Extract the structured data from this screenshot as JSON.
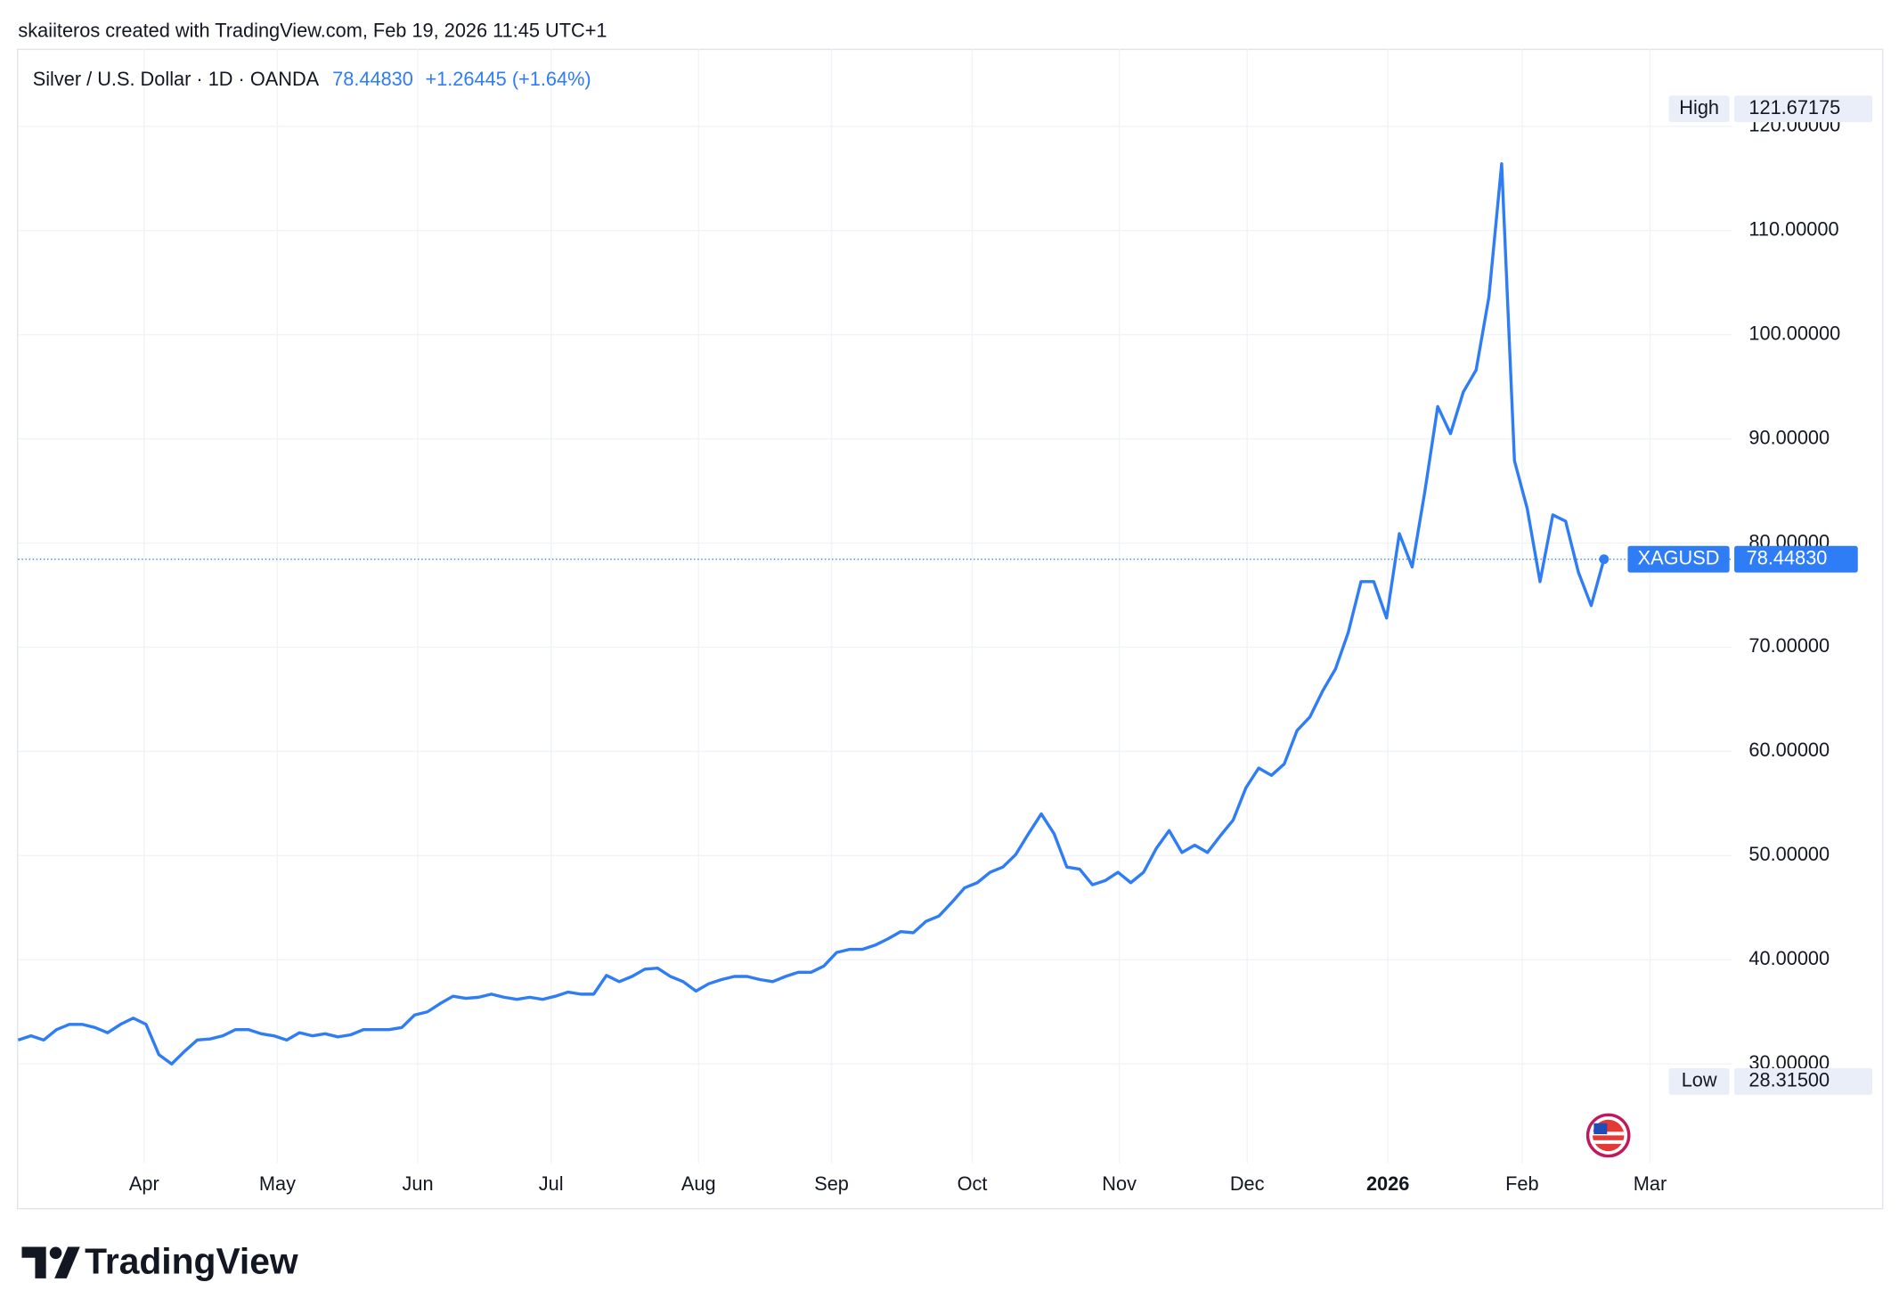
{
  "attribution": "skaiiteros created with TradingView.com, Feb 19, 2026 11:45 UTC+1",
  "footer": {
    "brand": "TradingView"
  },
  "chart_data": {
    "type": "line",
    "title": "Silver / U.S. Dollar · 1D · OANDA",
    "last": {
      "value": 78.4483,
      "label": "78.44830"
    },
    "change": "+1.26445 (+1.64%)",
    "high": {
      "name": "High",
      "value": 121.67175,
      "label": "121.67175"
    },
    "low": {
      "name": "Low",
      "value": 28.315,
      "label": "28.31500"
    },
    "series": [
      {
        "name": "XAGUSD",
        "color": "#2e7cf6",
        "values": [
          32.3,
          32.7,
          32.3,
          33.3,
          33.8,
          33.8,
          33.5,
          33.0,
          33.8,
          34.4,
          33.8,
          30.9,
          30.0,
          31.2,
          32.3,
          32.4,
          32.7,
          33.3,
          33.3,
          32.9,
          32.7,
          32.3,
          33.0,
          32.7,
          32.9,
          32.6,
          32.8,
          33.3,
          33.3,
          33.3,
          33.5,
          34.7,
          35.0,
          35.8,
          36.5,
          36.3,
          36.4,
          36.7,
          36.4,
          36.2,
          36.4,
          36.2,
          36.5,
          36.9,
          36.7,
          36.7,
          38.5,
          37.9,
          38.4,
          39.1,
          39.2,
          38.4,
          37.9,
          37.0,
          37.7,
          38.1,
          38.4,
          38.4,
          38.1,
          37.9,
          38.4,
          38.8,
          38.8,
          39.4,
          40.7,
          41.0,
          41.0,
          41.4,
          42.0,
          42.7,
          42.6,
          43.7,
          44.2,
          45.5,
          46.9,
          47.4,
          48.4,
          48.9,
          50.1,
          52.1,
          54.0,
          52.1,
          48.9,
          48.7,
          47.2,
          47.6,
          48.4,
          47.4,
          48.4,
          50.7,
          52.4,
          50.3,
          51.0,
          50.3,
          51.9,
          53.4,
          56.5,
          58.4,
          57.7,
          58.8,
          62.0,
          63.3,
          65.8,
          67.9,
          71.4,
          76.3,
          76.3,
          72.8,
          80.9,
          77.7,
          85.0,
          93.1,
          90.5,
          94.5,
          96.6,
          103.6,
          116.4,
          87.9,
          83.3,
          76.3,
          82.7,
          82.1,
          77.2,
          74.0,
          78.4483
        ]
      }
    ],
    "xlim": [
      0,
      134
    ],
    "xticks": [
      {
        "value": 9.85,
        "label": "Apr"
      },
      {
        "value": 20.27,
        "label": "May"
      },
      {
        "value": 31.25,
        "label": "Jun"
      },
      {
        "value": 41.67,
        "label": "Jul"
      },
      {
        "value": 53.2,
        "label": "Aug"
      },
      {
        "value": 63.6,
        "label": "Sep"
      },
      {
        "value": 74.6,
        "label": "Oct"
      },
      {
        "value": 86.1,
        "label": "Nov"
      },
      {
        "value": 96.1,
        "label": "Dec"
      },
      {
        "value": 107.1,
        "label": "2026",
        "bold": true
      },
      {
        "value": 117.6,
        "label": "Feb"
      },
      {
        "value": 127.6,
        "label": "Mar"
      }
    ],
    "ylim": [
      20.47,
      127.44
    ],
    "yticks": [
      {
        "value": 30,
        "label": "30.00000"
      },
      {
        "value": 40,
        "label": "40.00000"
      },
      {
        "value": 50,
        "label": "50.00000"
      },
      {
        "value": 60,
        "label": "60.00000"
      },
      {
        "value": 70,
        "label": "70.00000"
      },
      {
        "value": 80,
        "label": "80.00000"
      },
      {
        "value": 90,
        "label": "90.00000"
      },
      {
        "value": 100,
        "label": "100.00000"
      },
      {
        "value": 110,
        "label": "110.00000"
      },
      {
        "value": 120,
        "label": "120.00000"
      }
    ],
    "grid": true
  }
}
